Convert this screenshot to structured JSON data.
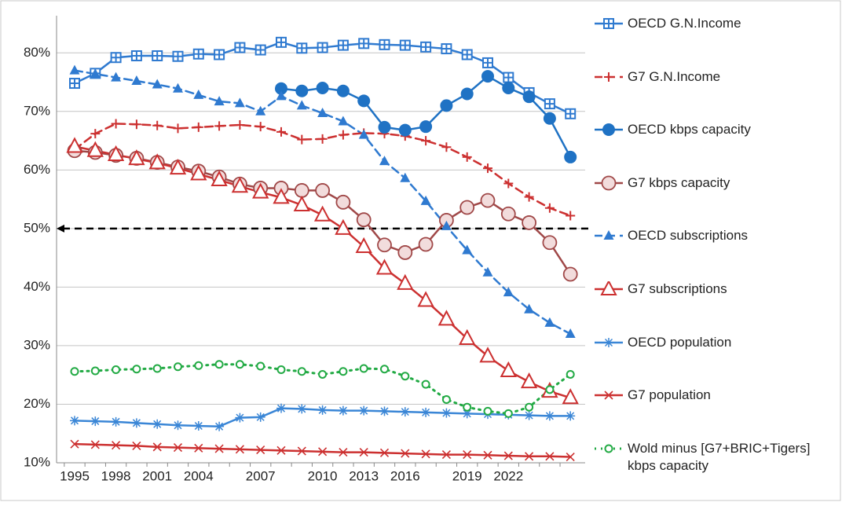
{
  "chart_data": {
    "type": "line",
    "categories": [
      "1995",
      null,
      "1998",
      null,
      "2001",
      null,
      "2004",
      null,
      null,
      "2007",
      null,
      null,
      "2010",
      null,
      "2013",
      null,
      "2016",
      null,
      null,
      "2019",
      null,
      "2022",
      null,
      null,
      null
    ],
    "ylim": [
      10,
      85
    ],
    "yticks": [
      {
        "value": 10,
        "label": "10%"
      },
      {
        "value": 20,
        "label": "20%"
      },
      {
        "value": 30,
        "label": "30%"
      },
      {
        "value": 40,
        "label": "40%"
      },
      {
        "value": 50,
        "label": "50%"
      },
      {
        "value": 60,
        "label": "60%"
      },
      {
        "value": 70,
        "label": "70%"
      },
      {
        "value": 80,
        "label": "80%"
      }
    ],
    "grid": true,
    "reference_line": 50,
    "legend": "right",
    "series": [
      {
        "name": "OECD G.N.Income",
        "color": "#2f7ad0",
        "marker": "square-plus",
        "dash": "solid",
        "values": [
          74.8,
          76.5,
          79.2,
          79.5,
          79.5,
          79.4,
          79.8,
          79.7,
          80.9,
          80.5,
          81.8,
          80.8,
          80.9,
          81.3,
          81.6,
          81.4,
          81.3,
          81.0,
          80.7,
          79.7,
          78.3,
          75.8,
          73.2,
          71.3,
          69.6
        ]
      },
      {
        "name": "G7 G.N.Income",
        "color": "#cc3030",
        "marker": "plus",
        "dash": "dashed",
        "values": [
          63.5,
          66.2,
          67.9,
          67.8,
          67.6,
          67.1,
          67.3,
          67.5,
          67.7,
          67.4,
          66.5,
          65.2,
          65.3,
          66.0,
          66.3,
          66.2,
          65.8,
          65.0,
          63.9,
          62.2,
          60.3,
          57.7,
          55.4,
          53.5,
          52.2
        ]
      },
      {
        "name": "OECD kbps capacity",
        "color": "#1f72c4",
        "marker": "circle-filled",
        "dash": "solid",
        "values": [
          null,
          null,
          null,
          null,
          null,
          null,
          null,
          null,
          null,
          null,
          73.9,
          73.5,
          74.0,
          73.5,
          71.8,
          67.3,
          66.8,
          67.4,
          71.0,
          73.0,
          76.0,
          74.0,
          72.5,
          68.8,
          62.2
        ]
      },
      {
        "name": "G7 kbps capacity",
        "color": "#a04848",
        "marker": "circle-open",
        "dash": "solid",
        "values": [
          63.3,
          63.0,
          62.5,
          62.0,
          61.3,
          60.5,
          59.8,
          58.8,
          57.6,
          56.9,
          56.9,
          56.5,
          56.5,
          54.5,
          51.5,
          47.2,
          45.9,
          47.3,
          51.4,
          53.6,
          54.8,
          52.5,
          51.0,
          47.6,
          42.2
        ]
      },
      {
        "name": "OECD subscriptions",
        "color": "#2f7ad0",
        "marker": "triangle-filled",
        "dash": "dashed",
        "values": [
          77.0,
          76.4,
          75.8,
          75.2,
          74.6,
          73.9,
          72.8,
          71.7,
          71.4,
          70.0,
          72.6,
          71.0,
          69.7,
          68.3,
          66.0,
          61.5,
          58.6,
          54.7,
          50.4,
          46.3,
          42.5,
          39.1,
          36.2,
          33.9,
          32.0
        ]
      },
      {
        "name": "G7 subscriptions",
        "color": "#cc3030",
        "marker": "triangle-open",
        "dash": "solid",
        "values": [
          64.0,
          63.3,
          62.6,
          61.9,
          61.2,
          60.3,
          59.3,
          58.3,
          57.2,
          56.2,
          55.3,
          54.0,
          52.3,
          50.0,
          46.9,
          43.2,
          40.6,
          37.7,
          34.5,
          31.2,
          28.2,
          25.7,
          23.8,
          22.2,
          21.1
        ]
      },
      {
        "name": "OECD population",
        "color": "#3a86d6",
        "marker": "asterisk",
        "dash": "solid",
        "values": [
          17.2,
          17.1,
          17.0,
          16.8,
          16.6,
          16.4,
          16.3,
          16.2,
          17.7,
          17.8,
          19.3,
          19.2,
          19.0,
          18.9,
          18.9,
          18.8,
          18.7,
          18.6,
          18.5,
          18.4,
          18.3,
          18.2,
          18.1,
          18.0,
          18.0
        ]
      },
      {
        "name": "G7 population",
        "color": "#cc3030",
        "marker": "x",
        "dash": "solid",
        "values": [
          13.2,
          13.1,
          13.0,
          12.9,
          12.7,
          12.6,
          12.5,
          12.4,
          12.3,
          12.2,
          12.1,
          12.0,
          11.9,
          11.8,
          11.8,
          11.7,
          11.6,
          11.5,
          11.4,
          11.4,
          11.3,
          11.2,
          11.1,
          11.1,
          11.0
        ]
      },
      {
        "name": "Wold minus [G7+BRIC+Tigers] kbps capacity",
        "color": "#22aa44",
        "marker": "circle-small",
        "dash": "dotted",
        "values": [
          25.6,
          25.7,
          25.9,
          26.0,
          26.1,
          26.4,
          26.6,
          26.8,
          26.8,
          26.5,
          25.9,
          25.6,
          25.1,
          25.6,
          26.1,
          26.0,
          24.8,
          23.4,
          20.8,
          19.5,
          18.8,
          18.4,
          19.5,
          22.5,
          25.1
        ]
      }
    ]
  }
}
